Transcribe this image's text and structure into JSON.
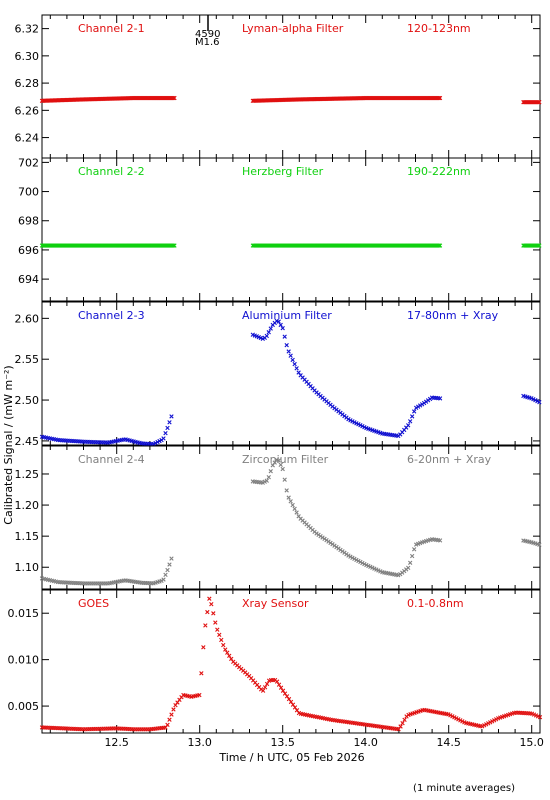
{
  "figure": {
    "xlabel": "Time / h UTC, 05 Feb 2026",
    "ylabel": "Calibrated Signal / (mW m⁻²)",
    "footnote": "(1 minute averages)",
    "flare_marker": {
      "time": "4590",
      "class": "M1.6",
      "x": 13.05
    }
  },
  "chart_data": [
    {
      "type": "scatter",
      "name": "Channel 2-1",
      "filter": "Lyman-alpha Filter",
      "band": "120-123nm",
      "color": "#e01010",
      "ylim": [
        6.225,
        6.33
      ],
      "yticks": [
        6.24,
        6.26,
        6.28,
        6.3,
        6.32
      ],
      "ytick_labels": [
        "6.24",
        "6.26",
        "6.28",
        "6.30",
        "6.32"
      ],
      "xlim": [
        12.05,
        15.05
      ],
      "segments": [
        {
          "x": [
            12.05,
            12.3,
            12.6,
            12.85
          ],
          "y": [
            6.267,
            6.268,
            6.269,
            6.269
          ]
        },
        {
          "x": [
            13.32,
            13.6,
            14.0,
            14.45
          ],
          "y": [
            6.267,
            6.268,
            6.269,
            6.269
          ]
        },
        {
          "x": [
            14.95,
            15.05
          ],
          "y": [
            6.266,
            6.266
          ]
        }
      ]
    },
    {
      "type": "scatter",
      "name": "Channel 2-2",
      "filter": "Herzberg Filter",
      "band": "190-222nm",
      "color": "#10d010",
      "ylim": [
        692.5,
        702.3
      ],
      "yticks": [
        694,
        696,
        698,
        700,
        702
      ],
      "ytick_labels": [
        "694",
        "696",
        "698",
        "700",
        "702"
      ],
      "xlim": [
        12.05,
        15.05
      ],
      "segments": [
        {
          "x": [
            12.05,
            12.85
          ],
          "y": [
            696.3,
            696.3
          ]
        },
        {
          "x": [
            13.32,
            14.45
          ],
          "y": [
            696.3,
            696.3
          ]
        },
        {
          "x": [
            14.95,
            15.05
          ],
          "y": [
            696.3,
            696.3
          ]
        }
      ]
    },
    {
      "type": "scatter",
      "name": "Channel 2-3",
      "filter": "Aluminium Filter",
      "band": "17-80nm + Xray",
      "color": "#1010d0",
      "ylim": [
        2.445,
        2.62
      ],
      "yticks": [
        2.45,
        2.5,
        2.55,
        2.6
      ],
      "ytick_labels": [
        "2.45",
        "2.50",
        "2.55",
        "2.60"
      ],
      "xlim": [
        12.05,
        15.05
      ],
      "segments": [
        {
          "x": [
            12.05,
            12.15,
            12.3,
            12.45,
            12.55,
            12.65,
            12.72,
            12.78,
            12.81,
            12.84
          ],
          "y": [
            2.455,
            2.451,
            2.449,
            2.448,
            2.452,
            2.447,
            2.446,
            2.452,
            2.468,
            2.486
          ]
        },
        {
          "x": [
            13.32,
            13.38,
            13.4,
            13.44,
            13.47,
            13.5,
            13.53,
            13.6,
            13.7,
            13.8,
            13.9,
            14.0,
            14.1,
            14.2,
            14.26,
            14.3,
            14.35,
            14.4,
            14.45
          ],
          "y": [
            2.58,
            2.575,
            2.577,
            2.592,
            2.598,
            2.588,
            2.562,
            2.532,
            2.51,
            2.492,
            2.476,
            2.466,
            2.459,
            2.456,
            2.47,
            2.49,
            2.496,
            2.503,
            2.502
          ]
        },
        {
          "x": [
            14.95,
            15.0,
            15.05
          ],
          "y": [
            2.505,
            2.502,
            2.497
          ]
        }
      ]
    },
    {
      "type": "scatter",
      "name": "Channel 2-4",
      "filter": "Zirconium Filter",
      "band": "6-20nm + Xray",
      "color": "#808080",
      "ylim": [
        1.065,
        1.295
      ],
      "yticks": [
        1.1,
        1.15,
        1.2,
        1.25
      ],
      "ytick_labels": [
        "1.10",
        "1.15",
        "1.20",
        "1.25"
      ],
      "xlim": [
        12.05,
        15.05
      ],
      "segments": [
        {
          "x": [
            12.05,
            12.15,
            12.3,
            12.45,
            12.55,
            12.65,
            12.72,
            12.78,
            12.81,
            12.84
          ],
          "y": [
            1.082,
            1.076,
            1.074,
            1.074,
            1.079,
            1.075,
            1.074,
            1.079,
            1.098,
            1.122
          ]
        },
        {
          "x": [
            13.32,
            13.38,
            13.41,
            13.44,
            13.47,
            13.5,
            13.53,
            13.6,
            13.7,
            13.8,
            13.9,
            14.0,
            14.1,
            14.2,
            14.26,
            14.3,
            14.35,
            14.4,
            14.45
          ],
          "y": [
            1.238,
            1.236,
            1.24,
            1.264,
            1.275,
            1.258,
            1.215,
            1.18,
            1.155,
            1.137,
            1.118,
            1.104,
            1.092,
            1.087,
            1.1,
            1.136,
            1.141,
            1.145,
            1.143
          ]
        },
        {
          "x": [
            14.95,
            15.0,
            15.05
          ],
          "y": [
            1.143,
            1.14,
            1.136
          ]
        }
      ]
    },
    {
      "type": "scatter",
      "name": "GOES",
      "filter": "Xray Sensor",
      "band": "0.1-0.8nm",
      "color": "#e01010",
      "ylim": [
        0.0021,
        0.0175
      ],
      "yticks": [
        0.005,
        0.01,
        0.015
      ],
      "ytick_labels": [
        "0.005",
        "0.010",
        "0.015"
      ],
      "xtick_values": [
        12.5,
        13.0,
        13.5,
        14.0,
        14.5,
        15.0
      ],
      "xtick_labels": [
        "12.5",
        "13.0",
        "13.5",
        "14.0",
        "14.5",
        "15.0"
      ],
      "xlim": [
        12.05,
        15.05
      ],
      "segments": [
        {
          "x": [
            12.05,
            12.3,
            12.5,
            12.6,
            12.7,
            12.8,
            12.85,
            12.9,
            12.95,
            13.0,
            13.03,
            13.06,
            13.1,
            13.15,
            13.2,
            13.3,
            13.38,
            13.42,
            13.46,
            13.5,
            13.6,
            13.8,
            14.0,
            14.2,
            14.25,
            14.35,
            14.5,
            14.6,
            14.7,
            14.8,
            14.9,
            15.0,
            15.05
          ],
          "y": [
            0.0027,
            0.0025,
            0.0026,
            0.0025,
            0.0025,
            0.0027,
            0.005,
            0.0062,
            0.006,
            0.0062,
            0.0132,
            0.0168,
            0.0135,
            0.0112,
            0.0098,
            0.0082,
            0.0066,
            0.0078,
            0.0078,
            0.0067,
            0.0042,
            0.0035,
            0.003,
            0.0025,
            0.004,
            0.0046,
            0.0041,
            0.0032,
            0.0028,
            0.0037,
            0.0043,
            0.0042,
            0.0038
          ]
        }
      ]
    }
  ]
}
